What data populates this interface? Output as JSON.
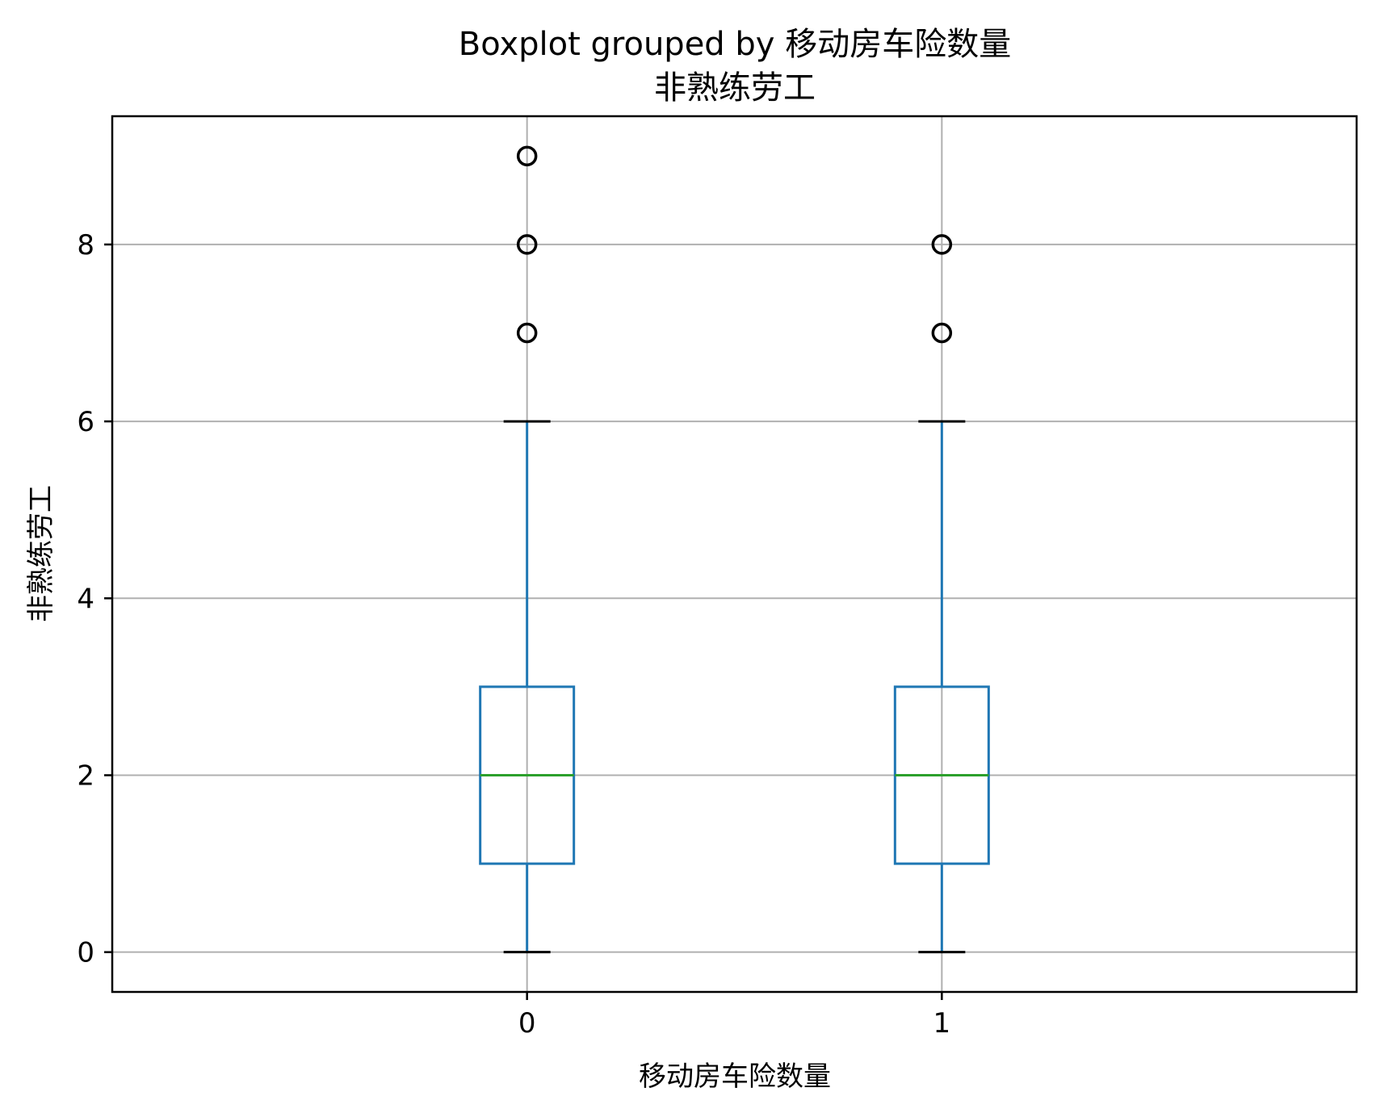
{
  "chart_data": {
    "type": "boxplot",
    "title": "Boxplot grouped by 移动房车险数量",
    "subtitle": "非熟练劳工",
    "xlabel": "移动房车险数量",
    "ylabel": "非熟练劳工",
    "categories": [
      "0",
      "1"
    ],
    "ylim": [
      -0.45,
      9.45
    ],
    "yticks": [
      0,
      2,
      4,
      6,
      8
    ],
    "grid": true,
    "boxes": [
      {
        "category": "0",
        "whisker_low": 0,
        "q1": 1,
        "median": 2,
        "q3": 3,
        "whisker_high": 6,
        "outliers": [
          7,
          8,
          9
        ]
      },
      {
        "category": "1",
        "whisker_low": 0,
        "q1": 1,
        "median": 2,
        "q3": 3,
        "whisker_high": 6,
        "outliers": [
          7,
          8
        ]
      }
    ],
    "colors": {
      "box": "#1f77b4",
      "median": "#2ca02c",
      "whisker_cap": "#000000",
      "outlier": "#000000",
      "grid": "#b0b0b0"
    }
  }
}
